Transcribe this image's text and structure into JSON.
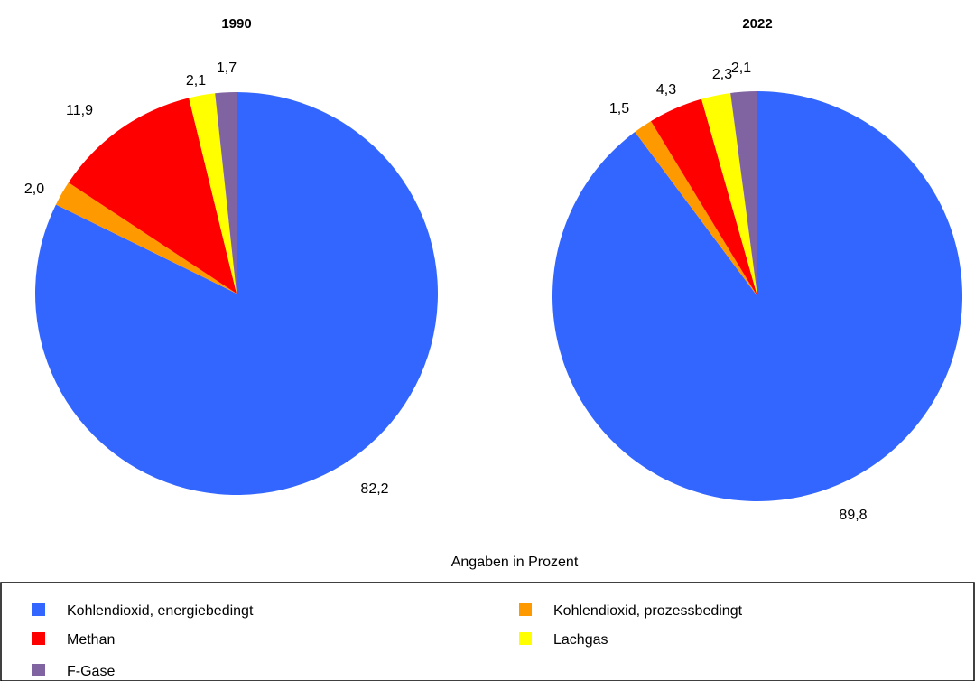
{
  "chart_data": [
    {
      "type": "pie",
      "title": "1990",
      "categories": [
        "Kohlendioxid, energiebedingt",
        "Kohlendioxid, prozessbedingt",
        "Methan",
        "Lachgas",
        "F-Gase"
      ],
      "values": [
        82.2,
        2.0,
        11.9,
        2.1,
        1.7
      ],
      "labels": [
        "82,2",
        "2,0",
        "11,9",
        "2,1",
        "1,7"
      ]
    },
    {
      "type": "pie",
      "title": "2022",
      "categories": [
        "Kohlendioxid, energiebedingt",
        "Kohlendioxid, prozessbedingt",
        "Methan",
        "Lachgas",
        "F-Gase"
      ],
      "values": [
        89.8,
        1.5,
        4.3,
        2.3,
        2.1
      ],
      "labels": [
        "89,8",
        "1,5",
        "4,3",
        "2,3",
        "2,1"
      ]
    }
  ],
  "caption": "Angaben in Prozent",
  "legend": [
    {
      "label": "Kohlendioxid, energiebedingt",
      "color": "#3366FF"
    },
    {
      "label": "Kohlendioxid, prozessbedingt",
      "color": "#FF9900"
    },
    {
      "label": "Methan",
      "color": "#FF0000"
    },
    {
      "label": "Lachgas",
      "color": "#FFFF00"
    },
    {
      "label": "F-Gase",
      "color": "#8064A2"
    }
  ]
}
